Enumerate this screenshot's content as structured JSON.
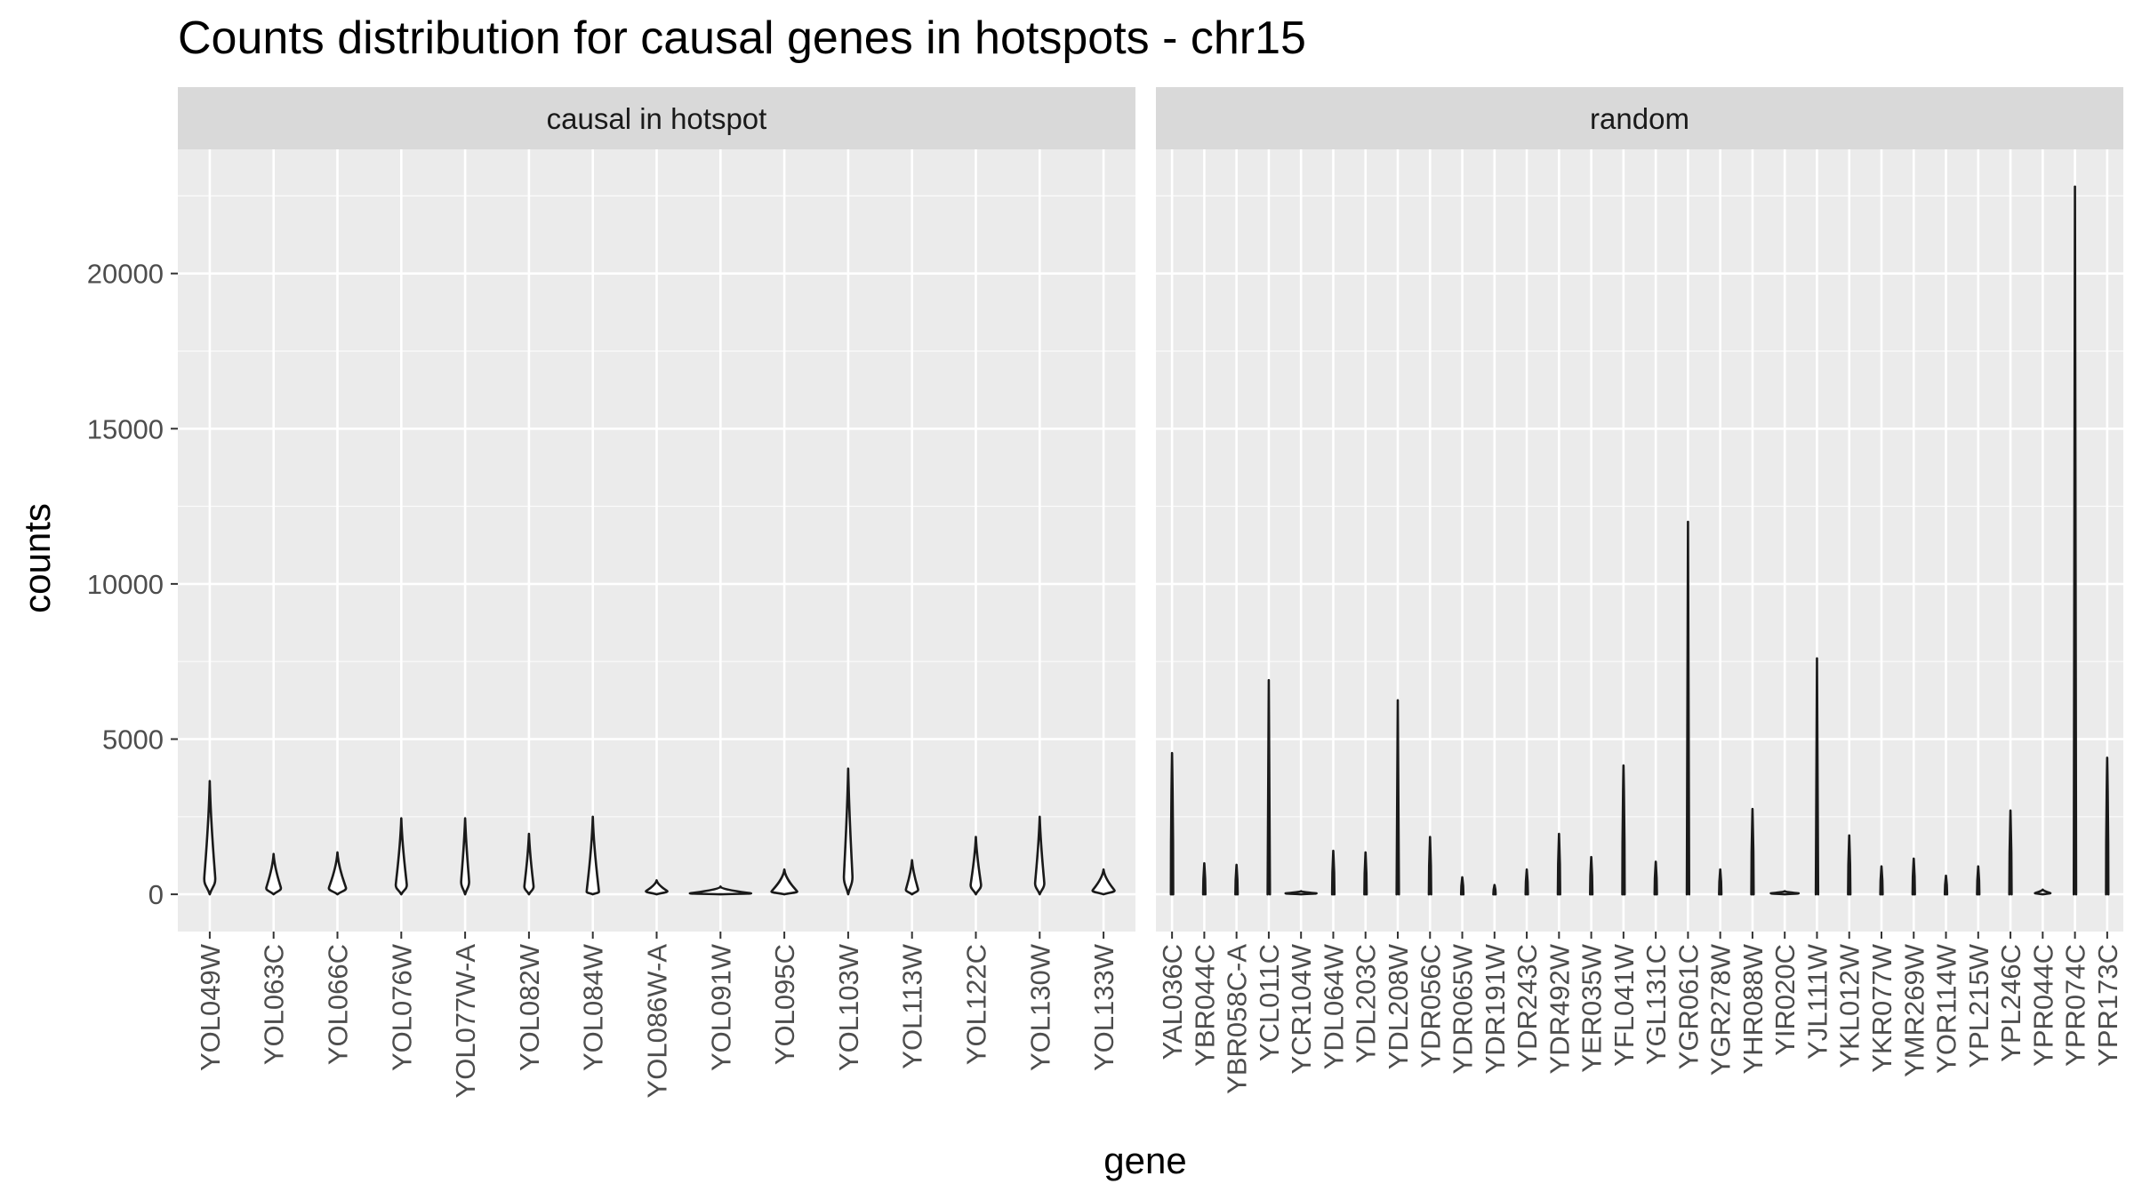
{
  "chart_data": {
    "type": "violin",
    "title": "Counts distribution for causal genes in hotspots - chr15",
    "xlabel": "gene",
    "ylabel": "counts",
    "ylim": [
      -1200,
      24000
    ],
    "yticks": [
      0,
      5000,
      10000,
      15000,
      20000
    ],
    "grid": true,
    "colors": {
      "panel_bg": "#ebebeb",
      "strip_bg": "#d9d9d9",
      "grid": "#ffffff",
      "violin": "#1a1a1a",
      "tick_text": "#4d4d4d"
    },
    "facets": [
      {
        "name": "causal in hotspot",
        "genes": [
          {
            "gene": "YOL049W",
            "min": 0,
            "max": 3650,
            "mode": 500,
            "bulge": 0.18
          },
          {
            "gene": "YOL063C",
            "min": 0,
            "max": 1300,
            "mode": 200,
            "bulge": 0.24
          },
          {
            "gene": "YOL066C",
            "min": 0,
            "max": 1350,
            "mode": 200,
            "bulge": 0.28
          },
          {
            "gene": "YOL076W",
            "min": 0,
            "max": 2450,
            "mode": 300,
            "bulge": 0.18
          },
          {
            "gene": "YOL077W-A",
            "min": 0,
            "max": 2450,
            "mode": 400,
            "bulge": 0.13
          },
          {
            "gene": "YOL082W",
            "min": 0,
            "max": 1950,
            "mode": 250,
            "bulge": 0.15
          },
          {
            "gene": "YOL084W",
            "min": 0,
            "max": 2500,
            "mode": 80,
            "bulge": 0.2
          },
          {
            "gene": "YOL086W-A",
            "min": 0,
            "max": 450,
            "mode": 100,
            "bulge": 0.35
          },
          {
            "gene": "YOL091W",
            "min": 0,
            "max": 250,
            "mode": 30,
            "bulge": 1.0
          },
          {
            "gene": "YOL095C",
            "min": 0,
            "max": 800,
            "mode": 90,
            "bulge": 0.42
          },
          {
            "gene": "YOL103W",
            "min": 0,
            "max": 4050,
            "mode": 550,
            "bulge": 0.14
          },
          {
            "gene": "YOL113W",
            "min": 0,
            "max": 1100,
            "mode": 150,
            "bulge": 0.2
          },
          {
            "gene": "YOL122C",
            "min": 0,
            "max": 1850,
            "mode": 300,
            "bulge": 0.17
          },
          {
            "gene": "YOL130W",
            "min": 0,
            "max": 2500,
            "mode": 350,
            "bulge": 0.15
          },
          {
            "gene": "YOL133W",
            "min": 0,
            "max": 800,
            "mode": 120,
            "bulge": 0.36
          }
        ]
      },
      {
        "name": "random",
        "genes": [
          {
            "gene": "YAL036C",
            "min": 0,
            "max": 4550,
            "mode": 0,
            "bulge": 0.0
          },
          {
            "gene": "YBR044C",
            "min": 0,
            "max": 1000,
            "mode": 0,
            "bulge": 0.0
          },
          {
            "gene": "YBR058C-A",
            "min": 0,
            "max": 950,
            "mode": 0,
            "bulge": 0.0
          },
          {
            "gene": "YCL011C",
            "min": 150,
            "max": 6900,
            "mode": 0,
            "bulge": 0.0
          },
          {
            "gene": "YCR104W",
            "min": 0,
            "max": 100,
            "mode": 30,
            "bulge": 1.0
          },
          {
            "gene": "YDL064W",
            "min": 0,
            "max": 1400,
            "mode": 0,
            "bulge": 0.0
          },
          {
            "gene": "YDL203C",
            "min": 0,
            "max": 1350,
            "mode": 0,
            "bulge": 0.0
          },
          {
            "gene": "YDL208W",
            "min": 100,
            "max": 6250,
            "mode": 0,
            "bulge": 0.0
          },
          {
            "gene": "YDR056C",
            "min": 50,
            "max": 1850,
            "mode": 0,
            "bulge": 0.0
          },
          {
            "gene": "YDR065W",
            "min": 0,
            "max": 550,
            "mode": 0,
            "bulge": 0.0
          },
          {
            "gene": "YDR191W",
            "min": 0,
            "max": 300,
            "mode": 0,
            "bulge": 0.0
          },
          {
            "gene": "YDR243C",
            "min": 0,
            "max": 800,
            "mode": 0,
            "bulge": 0.0
          },
          {
            "gene": "YDR492W",
            "min": 0,
            "max": 1950,
            "mode": 0,
            "bulge": 0.0
          },
          {
            "gene": "YER035W",
            "min": 0,
            "max": 1200,
            "mode": 0,
            "bulge": 0.0
          },
          {
            "gene": "YFL041W",
            "min": 0,
            "max": 4150,
            "mode": 0,
            "bulge": 0.0
          },
          {
            "gene": "YGL131C",
            "min": 0,
            "max": 1050,
            "mode": 0,
            "bulge": 0.0
          },
          {
            "gene": "YGR061C",
            "min": 150,
            "max": 12000,
            "mode": 0,
            "bulge": 0.0
          },
          {
            "gene": "YGR278W",
            "min": 0,
            "max": 800,
            "mode": 0,
            "bulge": 0.0
          },
          {
            "gene": "YHR088W",
            "min": 0,
            "max": 2750,
            "mode": 0,
            "bulge": 0.0
          },
          {
            "gene": "YIR020C",
            "min": 0,
            "max": 100,
            "mode": 30,
            "bulge": 0.9
          },
          {
            "gene": "YJL111W",
            "min": 150,
            "max": 7600,
            "mode": 0,
            "bulge": 0.0
          },
          {
            "gene": "YKL012W",
            "min": 0,
            "max": 1900,
            "mode": 0,
            "bulge": 0.0
          },
          {
            "gene": "YKR077W",
            "min": 0,
            "max": 900,
            "mode": 0,
            "bulge": 0.0
          },
          {
            "gene": "YMR269W",
            "min": 0,
            "max": 1150,
            "mode": 0,
            "bulge": 0.0
          },
          {
            "gene": "YOR114W",
            "min": 0,
            "max": 600,
            "mode": 0,
            "bulge": 0.0
          },
          {
            "gene": "YPL215W",
            "min": 0,
            "max": 900,
            "mode": 0,
            "bulge": 0.0
          },
          {
            "gene": "YPL246C",
            "min": 100,
            "max": 2700,
            "mode": 0,
            "bulge": 0.0
          },
          {
            "gene": "YPR044C",
            "min": 0,
            "max": 150,
            "mode": 40,
            "bulge": 0.5
          },
          {
            "gene": "YPR074C",
            "min": 950,
            "max": 22800,
            "mode": 0,
            "bulge": 0.0
          },
          {
            "gene": "YPR173C",
            "min": 100,
            "max": 4400,
            "mode": 0,
            "bulge": 0.0
          }
        ]
      }
    ]
  }
}
